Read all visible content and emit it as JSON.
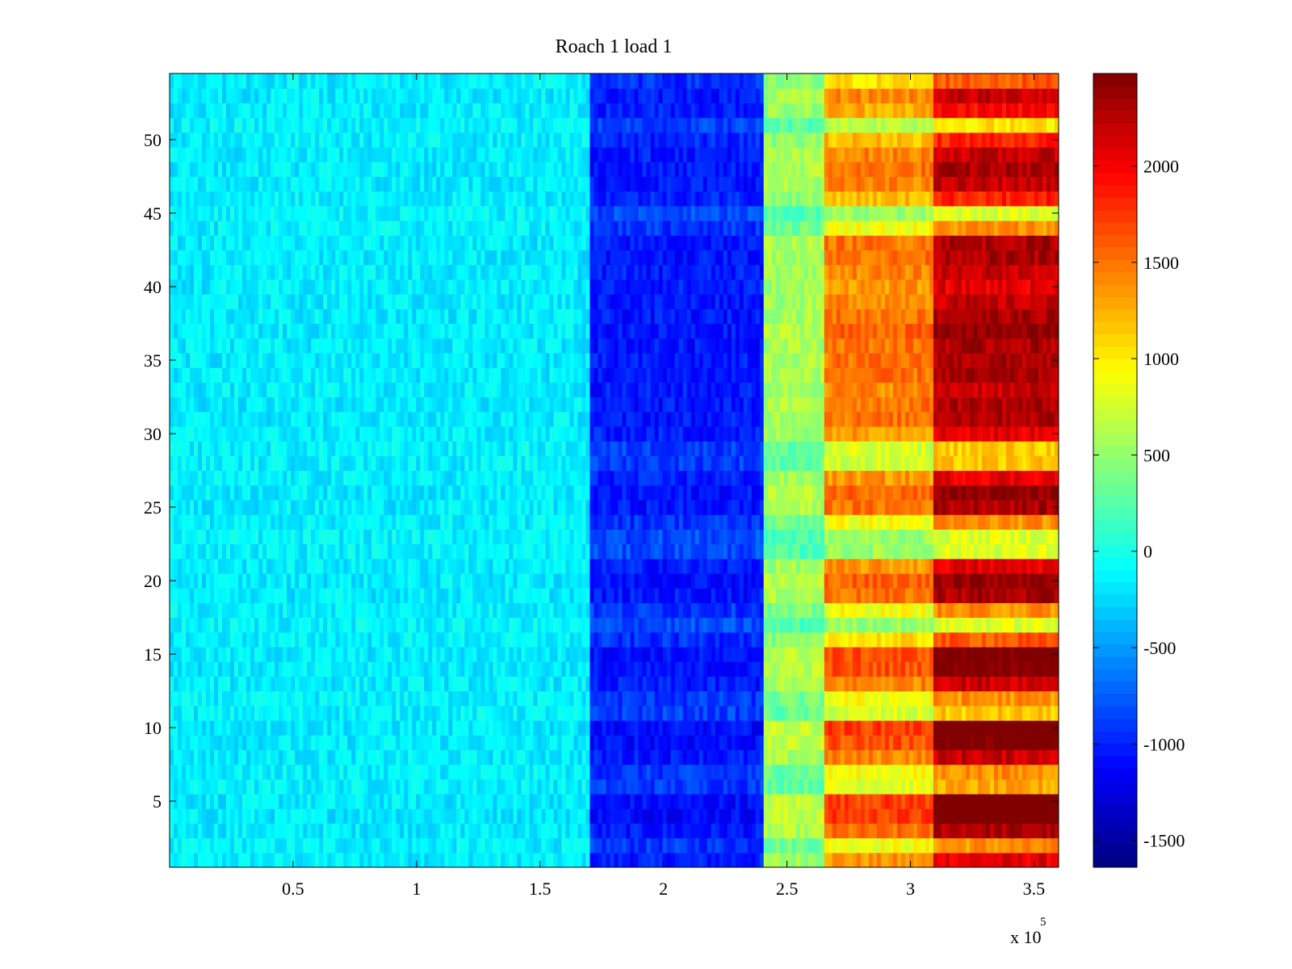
{
  "chart_data": {
    "type": "heatmap",
    "title": "Roach 1 load 1",
    "xlabel": "",
    "ylabel": "",
    "x_multiplier_label": "x 10",
    "x_multiplier_exponent": "5",
    "xlim": [
      0,
      360000
    ],
    "ylim": [
      0.5,
      54.5
    ],
    "x_ticks": [
      50000,
      100000,
      150000,
      200000,
      250000,
      300000,
      350000
    ],
    "x_tick_labels": [
      "0.5",
      "1",
      "1.5",
      "2",
      "2.5",
      "3",
      "3.5"
    ],
    "y_ticks": [
      5,
      10,
      15,
      20,
      25,
      30,
      35,
      40,
      45,
      50
    ],
    "y_tick_labels": [
      "5",
      "10",
      "15",
      "20",
      "25",
      "30",
      "35",
      "40",
      "45",
      "50"
    ],
    "rows": 54,
    "colorbar": {
      "colormap": "jet",
      "clim": [
        -1640,
        2480
      ],
      "ticks": [
        -1500,
        -1000,
        -500,
        0,
        500,
        1000,
        1500,
        2000
      ],
      "tick_labels": [
        "-1500",
        "-1000",
        "-500",
        "0",
        "500",
        "1000",
        "1500",
        "2000"
      ]
    },
    "x_segments": [
      {
        "x_start": 0,
        "x_end": 170000,
        "approx_value": -150
      },
      {
        "x_start": 170000,
        "x_end": 240000,
        "approx_value": -950
      },
      {
        "x_start": 240000,
        "x_end": 265000,
        "approx_value": 600
      },
      {
        "x_start": 265000,
        "x_end": 310000,
        "approx_value": 1500
      },
      {
        "x_start": 310000,
        "x_end": 360000,
        "approx_value": 2300
      }
    ],
    "row_intensity": [
      0.9,
      0.6,
      1.0,
      1.15,
      1.15,
      0.55,
      0.6,
      0.95,
      1.1,
      1.15,
      0.5,
      0.6,
      0.95,
      1.1,
      1.1,
      0.7,
      0.35,
      0.6,
      1.0,
      1.05,
      0.9,
      0.35,
      0.35,
      0.6,
      1.0,
      1.05,
      0.9,
      0.5,
      0.5,
      0.9,
      1.0,
      1.0,
      0.95,
      1.0,
      1.0,
      1.0,
      1.05,
      1.0,
      0.95,
      0.9,
      0.95,
      1.0,
      1.0,
      0.6,
      0.35,
      0.8,
      0.95,
      1.0,
      0.95,
      0.8,
      0.45,
      0.85,
      0.95,
      0.7
    ]
  }
}
